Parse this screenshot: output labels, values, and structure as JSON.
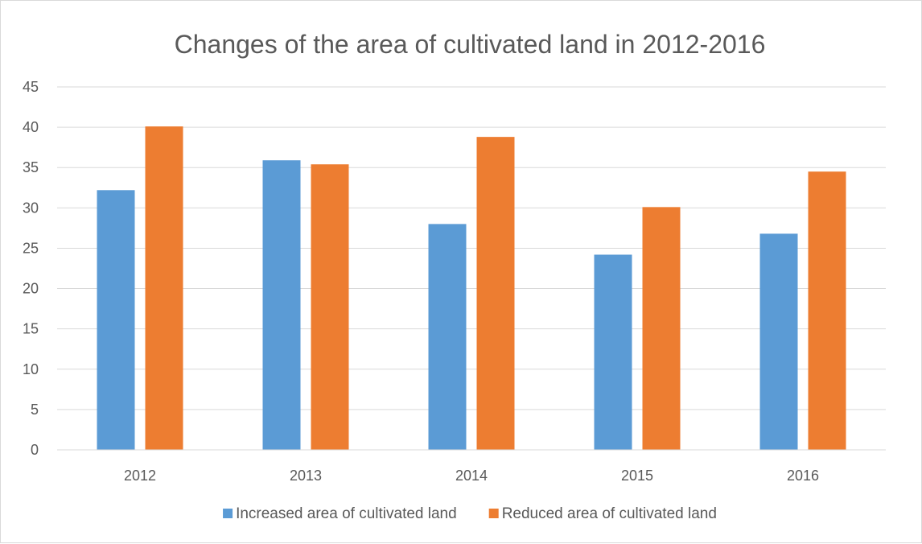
{
  "chart_data": {
    "type": "bar",
    "title": "Changes of the area of cultivated land in 2012-2016",
    "xlabel": "",
    "ylabel": "",
    "categories": [
      "2012",
      "2013",
      "2014",
      "2015",
      "2016"
    ],
    "series": [
      {
        "name": "Increased area of cultivated land",
        "color": "#5b9bd5",
        "values": [
          32.2,
          35.9,
          28.0,
          24.2,
          26.8
        ]
      },
      {
        "name": "Reduced area of cultivated land",
        "color": "#ed7d31",
        "values": [
          40.1,
          35.4,
          38.8,
          30.1,
          34.5
        ]
      }
    ],
    "ylim": [
      0,
      45
    ],
    "ytick_step": 5,
    "yticks": [
      "0",
      "5",
      "10",
      "15",
      "20",
      "25",
      "30",
      "35",
      "40",
      "45"
    ],
    "grid": true,
    "legend_position": "bottom"
  }
}
